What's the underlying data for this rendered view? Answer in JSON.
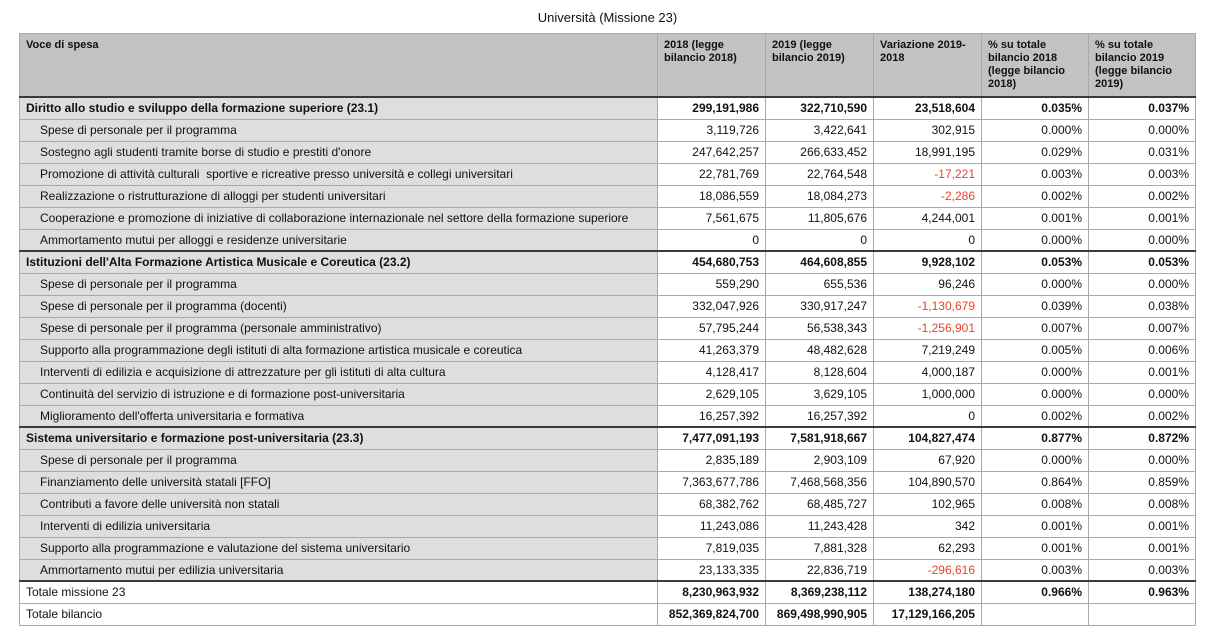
{
  "title": "Università (Missione 23)",
  "colors": {
    "negative_value": "#e8432c",
    "header_background": "#c2c2c2",
    "label_column_background": "#dedede",
    "section_divider": "#3a3a3a"
  },
  "table": {
    "columns": [
      "Voce di spesa",
      "2018 (legge bilancio 2018)",
      "2019 (legge bilancio 2019)",
      "Variazione 2019-2018",
      "% su totale bilancio 2018 (legge bilancio 2018)",
      "% su totale bilancio 2019 (legge bilancio 2019)"
    ],
    "rows": [
      {
        "type": "section",
        "label": "Diritto allo studio e sviluppo della formazione superiore (23.1)",
        "values": [
          "299,191,986",
          "322,710,590",
          "23,518,604",
          "0.035%",
          "0.037%"
        ]
      },
      {
        "type": "sub",
        "label": "Spese di personale per il programma",
        "values": [
          "3,119,726",
          "3,422,641",
          "302,915",
          "0.000%",
          "0.000%"
        ]
      },
      {
        "type": "sub",
        "label": "Sostegno agli studenti tramite borse di studio e prestiti d'onore",
        "values": [
          "247,642,257",
          "266,633,452",
          "18,991,195",
          "0.029%",
          "0.031%"
        ]
      },
      {
        "type": "sub",
        "label": "Promozione di attività culturali  sportive e ricreative presso università e collegi universitari",
        "values": [
          "22,781,769",
          "22,764,548",
          "-17,221",
          "0.003%",
          "0.003%"
        ]
      },
      {
        "type": "sub",
        "label": "Realizzazione o ristrutturazione di alloggi per studenti universitari",
        "values": [
          "18,086,559",
          "18,084,273",
          "-2,286",
          "0.002%",
          "0.002%"
        ]
      },
      {
        "type": "sub",
        "label": "Cooperazione e promozione di iniziative di collaborazione internazionale nel settore della formazione superiore",
        "values": [
          "7,561,675",
          "11,805,676",
          "4,244,001",
          "0.001%",
          "0.001%"
        ]
      },
      {
        "type": "sub",
        "label": "Ammortamento mutui per alloggi e residenze universitarie",
        "values": [
          "0",
          "0",
          "0",
          "0.000%",
          "0.000%"
        ]
      },
      {
        "type": "section",
        "label": "Istituzioni dell'Alta Formazione Artistica Musicale e Coreutica (23.2)",
        "values": [
          "454,680,753",
          "464,608,855",
          "9,928,102",
          "0.053%",
          "0.053%"
        ]
      },
      {
        "type": "sub",
        "label": "Spese di personale per il programma",
        "values": [
          "559,290",
          "655,536",
          "96,246",
          "0.000%",
          "0.000%"
        ]
      },
      {
        "type": "sub",
        "label": "Spese di personale per il programma (docenti)",
        "values": [
          "332,047,926",
          "330,917,247",
          "-1,130,679",
          "0.039%",
          "0.038%"
        ]
      },
      {
        "type": "sub",
        "label": "Spese di personale per il programma (personale amministrativo)",
        "values": [
          "57,795,244",
          "56,538,343",
          "-1,256,901",
          "0.007%",
          "0.007%"
        ]
      },
      {
        "type": "sub",
        "label": "Supporto alla programmazione degli istituti di alta formazione artistica musicale e coreutica",
        "values": [
          "41,263,379",
          "48,482,628",
          "7,219,249",
          "0.005%",
          "0.006%"
        ]
      },
      {
        "type": "sub",
        "label": "Interventi di edilizia e acquisizione di attrezzature per gli istituti di alta cultura",
        "values": [
          "4,128,417",
          "8,128,604",
          "4,000,187",
          "0.000%",
          "0.001%"
        ]
      },
      {
        "type": "sub",
        "label": "Continuità del servizio di istruzione e di formazione post-universitaria",
        "values": [
          "2,629,105",
          "3,629,105",
          "1,000,000",
          "0.000%",
          "0.000%"
        ]
      },
      {
        "type": "sub",
        "label": "Miglioramento dell'offerta universitaria e formativa",
        "values": [
          "16,257,392",
          "16,257,392",
          "0",
          "0.002%",
          "0.002%"
        ]
      },
      {
        "type": "section",
        "label": "Sistema universitario e formazione post-universitaria (23.3)",
        "values": [
          "7,477,091,193",
          "7,581,918,667",
          "104,827,474",
          "0.877%",
          "0.872%"
        ]
      },
      {
        "type": "sub",
        "label": "Spese di personale per il programma",
        "values": [
          "2,835,189",
          "2,903,109",
          "67,920",
          "0.000%",
          "0.000%"
        ]
      },
      {
        "type": "sub",
        "label": "Finanziamento delle università statali [FFO]",
        "values": [
          "7,363,677,786",
          "7,468,568,356",
          "104,890,570",
          "0.864%",
          "0.859%"
        ]
      },
      {
        "type": "sub",
        "label": "Contributi a favore delle università non statali",
        "values": [
          "68,382,762",
          "68,485,727",
          "102,965",
          "0.008%",
          "0.008%"
        ]
      },
      {
        "type": "sub",
        "label": "Interventi di edilizia universitaria",
        "values": [
          "11,243,086",
          "11,243,428",
          "342",
          "0.001%",
          "0.001%"
        ]
      },
      {
        "type": "sub",
        "label": "Supporto alla programmazione e valutazione del sistema universitario",
        "values": [
          "7,819,035",
          "7,881,328",
          "62,293",
          "0.001%",
          "0.001%"
        ]
      },
      {
        "type": "sub",
        "label": "Ammortamento mutui per edilizia universitaria",
        "values": [
          "23,133,335",
          "22,836,719",
          "-296,616",
          "0.003%",
          "0.003%"
        ]
      },
      {
        "type": "total",
        "label": "Totale missione 23",
        "values": [
          "8,230,963,932",
          "8,369,238,112",
          "138,274,180",
          "0.966%",
          "0.963%"
        ]
      },
      {
        "type": "grandtotal",
        "label": "Totale bilancio",
        "values": [
          "852,369,824,700",
          "869,498,990,905",
          "17,129,166,205",
          "",
          ""
        ]
      }
    ]
  }
}
